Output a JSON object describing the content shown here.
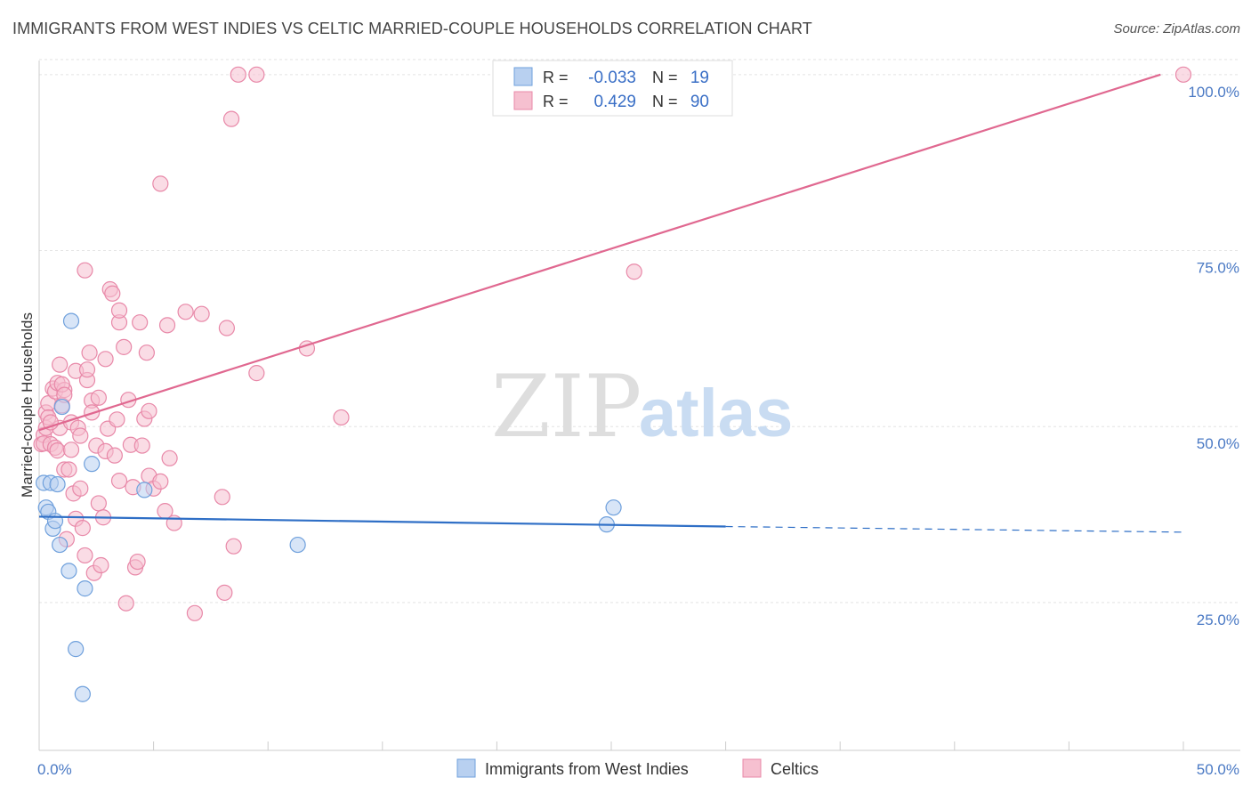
{
  "title": "IMMIGRANTS FROM WEST INDIES VS CELTIC MARRIED-COUPLE HOUSEHOLDS CORRELATION CHART",
  "source": "Source: ZipAtlas.com",
  "watermark": {
    "zip": "ZIP",
    "atlas": "atlas"
  },
  "chart_data": {
    "type": "scatter",
    "title": "IMMIGRANTS FROM WEST INDIES VS CELTIC MARRIED-COUPLE HOUSEHOLDS CORRELATION CHART",
    "xlabel": "",
    "ylabel": "Married-couple Households",
    "xlim": [
      0,
      50
    ],
    "ylim": [
      4,
      102
    ],
    "x_tick_labels": {
      "left": "0.0%",
      "right": "50.0%"
    },
    "y_ticks": [
      {
        "value": 25,
        "label": "25.0%"
      },
      {
        "value": 50,
        "label": "50.0%"
      },
      {
        "value": 75,
        "label": "75.0%"
      },
      {
        "value": 100,
        "label": "100.0%"
      }
    ],
    "legend": {
      "placement": "top-center",
      "rows": [
        {
          "r_label": "R =",
          "r_value": "-0.033",
          "n_label": "N =",
          "n_value": "19"
        },
        {
          "r_label": "R =",
          "r_value": "0.429",
          "n_label": "N =",
          "n_value": "90"
        }
      ]
    },
    "series": [
      {
        "name": "Immigrants from West Indies",
        "color": "#6fa0dc",
        "fill": "#b8d0f0",
        "trend": {
          "x0": 0,
          "y0": 37.2,
          "x1": 30,
          "y1": 35.8,
          "dash_to_x": 50,
          "dash_to_y": 35.0,
          "color": "#2f6fc6"
        },
        "points": [
          [
            0.2,
            42.0
          ],
          [
            0.3,
            38.5
          ],
          [
            0.4,
            37.9
          ],
          [
            0.5,
            42.0
          ],
          [
            0.6,
            35.5
          ],
          [
            0.7,
            36.6
          ],
          [
            0.8,
            41.8
          ],
          [
            0.9,
            33.2
          ],
          [
            1.0,
            52.8
          ],
          [
            1.3,
            29.5
          ],
          [
            1.4,
            65.0
          ],
          [
            1.6,
            18.4
          ],
          [
            1.9,
            12.0
          ],
          [
            2.0,
            27.0
          ],
          [
            2.3,
            44.7
          ],
          [
            4.6,
            41.0
          ],
          [
            11.3,
            33.2
          ],
          [
            24.8,
            36.1
          ],
          [
            25.1,
            38.5
          ]
        ]
      },
      {
        "name": "Celtics",
        "color": "#e888a8",
        "fill": "#f6c0d0",
        "trend": {
          "x0": 0,
          "y0": 49.5,
          "x1": 49.0,
          "y1": 100.0,
          "color": "#e06890"
        },
        "points": [
          [
            0.1,
            47.5
          ],
          [
            0.2,
            48.8
          ],
          [
            0.2,
            47.6
          ],
          [
            0.3,
            52.0
          ],
          [
            0.3,
            49.8
          ],
          [
            0.4,
            53.3
          ],
          [
            0.4,
            51.3
          ],
          [
            0.5,
            47.5
          ],
          [
            0.6,
            55.4
          ],
          [
            0.7,
            55.0
          ],
          [
            0.7,
            47.0
          ],
          [
            0.8,
            46.6
          ],
          [
            0.8,
            56.2
          ],
          [
            0.9,
            58.8
          ],
          [
            0.9,
            49.8
          ],
          [
            1.0,
            53.0
          ],
          [
            1.1,
            43.9
          ],
          [
            1.1,
            55.2
          ],
          [
            1.2,
            34.0
          ],
          [
            1.3,
            43.9
          ],
          [
            1.4,
            50.6
          ],
          [
            1.5,
            40.5
          ],
          [
            1.6,
            57.9
          ],
          [
            1.6,
            36.9
          ],
          [
            1.7,
            49.8
          ],
          [
            1.8,
            41.2
          ],
          [
            1.9,
            35.6
          ],
          [
            2.0,
            31.7
          ],
          [
            2.1,
            56.6
          ],
          [
            2.1,
            58.1
          ],
          [
            2.0,
            72.2
          ],
          [
            2.2,
            60.5
          ],
          [
            2.3,
            53.7
          ],
          [
            2.4,
            29.2
          ],
          [
            2.5,
            47.3
          ],
          [
            2.6,
            39.1
          ],
          [
            2.6,
            54.1
          ],
          [
            2.7,
            30.3
          ],
          [
            2.8,
            37.1
          ],
          [
            2.9,
            59.6
          ],
          [
            2.9,
            46.5
          ],
          [
            3.0,
            49.7
          ],
          [
            3.1,
            69.5
          ],
          [
            3.2,
            68.9
          ],
          [
            3.3,
            45.9
          ],
          [
            3.4,
            51.0
          ],
          [
            3.5,
            42.3
          ],
          [
            3.5,
            64.8
          ],
          [
            3.5,
            66.5
          ],
          [
            3.7,
            61.3
          ],
          [
            3.8,
            24.9
          ],
          [
            3.9,
            53.8
          ],
          [
            4.0,
            47.4
          ],
          [
            4.1,
            41.4
          ],
          [
            4.2,
            30.0
          ],
          [
            4.3,
            30.8
          ],
          [
            4.4,
            64.8
          ],
          [
            4.5,
            47.3
          ],
          [
            4.6,
            51.1
          ],
          [
            4.7,
            60.5
          ],
          [
            4.8,
            43.0
          ],
          [
            5.0,
            41.2
          ],
          [
            5.3,
            42.2
          ],
          [
            5.5,
            38.0
          ],
          [
            5.6,
            64.4
          ],
          [
            5.7,
            45.5
          ],
          [
            5.9,
            36.3
          ],
          [
            6.4,
            66.3
          ],
          [
            7.1,
            66.0
          ],
          [
            6.8,
            23.5
          ],
          [
            8.0,
            40.0
          ],
          [
            8.2,
            64.0
          ],
          [
            8.5,
            33.0
          ],
          [
            8.1,
            26.4
          ],
          [
            9.5,
            57.6
          ],
          [
            11.7,
            61.1
          ],
          [
            13.2,
            51.3
          ],
          [
            5.3,
            84.5
          ],
          [
            8.4,
            93.7
          ],
          [
            8.7,
            100.0
          ],
          [
            9.5,
            100.0
          ],
          [
            26.0,
            72.0
          ],
          [
            50.0,
            100.0
          ],
          [
            1.0,
            56.0
          ],
          [
            1.4,
            46.7
          ],
          [
            1.8,
            48.7
          ],
          [
            2.3,
            52.0
          ],
          [
            4.8,
            52.2
          ],
          [
            1.1,
            54.5
          ],
          [
            0.5,
            50.6
          ]
        ]
      }
    ]
  }
}
